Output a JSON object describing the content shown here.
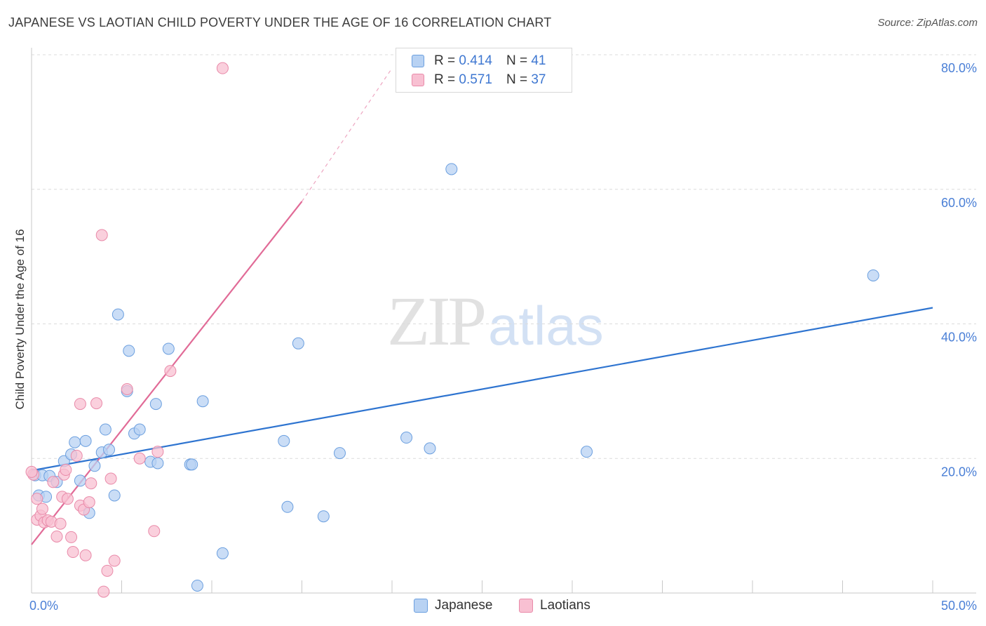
{
  "header": {
    "title": "JAPANESE VS LAOTIAN CHILD POVERTY UNDER THE AGE OF 16 CORRELATION CHART",
    "source": "Source: ZipAtlas.com"
  },
  "watermark": {
    "zip": "ZIP",
    "atlas": "atlas"
  },
  "legend": {
    "rows": [
      {
        "r_label": "R =",
        "r_value": "0.414",
        "n_label": "N =",
        "n_value": "41"
      },
      {
        "r_label": "R =",
        "r_value": "0.571",
        "n_label": "N =",
        "n_value": "37"
      }
    ]
  },
  "bottom_legend": {
    "japanese": "Japanese",
    "laotians": "Laotians"
  },
  "colors": {
    "japanese_fill": "#b8d2f3",
    "japanese_stroke": "#6b9fdf",
    "japanese_line": "#2e74d0",
    "laotians_fill": "#f8c0d2",
    "laotians_stroke": "#e98aa9",
    "laotians_line": "#e16b97",
    "tick_label": "#4a7fd6",
    "grid": "#dcdcdc"
  },
  "chart_data": {
    "type": "scatter",
    "title": "JAPANESE VS LAOTIAN CHILD POVERTY UNDER THE AGE OF 16 CORRELATION CHART",
    "xlabel": "",
    "ylabel": "Child Poverty Under the Age of 16",
    "xlim": [
      0,
      50
    ],
    "ylim": [
      0,
      80
    ],
    "x_tick_labels": [
      "0.0%",
      "50.0%"
    ],
    "y_ticks": [
      20,
      40,
      60,
      80
    ],
    "y_tick_labels": [
      "20.0%",
      "40.0%",
      "60.0%",
      "80.0%"
    ],
    "grid": true,
    "legend_position": "top-center",
    "series": [
      {
        "name": "Japanese",
        "r": 0.414,
        "n": 41,
        "trend": {
          "x": [
            0,
            50
          ],
          "y": [
            18.2,
            42.4
          ]
        },
        "points": [
          [
            0.2,
            17.5
          ],
          [
            0.4,
            14.5
          ],
          [
            0.6,
            17.5
          ],
          [
            0.8,
            14.3
          ],
          [
            1.0,
            17.4
          ],
          [
            1.4,
            16.5
          ],
          [
            1.8,
            19.6
          ],
          [
            2.2,
            20.6
          ],
          [
            2.4,
            22.4
          ],
          [
            2.7,
            16.7
          ],
          [
            3.0,
            22.6
          ],
          [
            3.2,
            11.9
          ],
          [
            3.5,
            18.9
          ],
          [
            3.9,
            20.9
          ],
          [
            4.1,
            24.3
          ],
          [
            4.3,
            21.3
          ],
          [
            4.6,
            14.5
          ],
          [
            4.8,
            41.4
          ],
          [
            5.3,
            30.0
          ],
          [
            5.4,
            36.0
          ],
          [
            5.7,
            23.7
          ],
          [
            6.0,
            24.3
          ],
          [
            6.6,
            19.5
          ],
          [
            7.0,
            19.3
          ],
          [
            6.9,
            28.1
          ],
          [
            7.6,
            36.3
          ],
          [
            8.8,
            19.1
          ],
          [
            8.9,
            19.1
          ],
          [
            9.5,
            28.5
          ],
          [
            9.2,
            1.1
          ],
          [
            10.6,
            5.9
          ],
          [
            14.0,
            22.6
          ],
          [
            14.2,
            12.8
          ],
          [
            14.8,
            37.1
          ],
          [
            16.2,
            11.4
          ],
          [
            17.1,
            20.8
          ],
          [
            20.8,
            23.1
          ],
          [
            22.1,
            21.5
          ],
          [
            23.3,
            63.0
          ],
          [
            30.8,
            21.0
          ],
          [
            46.7,
            47.2
          ]
        ]
      },
      {
        "name": "Laotians",
        "r": 0.571,
        "n": 37,
        "trend": {
          "x": [
            0,
            15
          ],
          "y": [
            7.2,
            58.2
          ],
          "dashed_extension": {
            "x": [
              15,
              20
            ],
            "y": [
              58.2,
              78.0
            ]
          }
        },
        "points": [
          [
            0.1,
            17.6
          ],
          [
            0.3,
            14.0
          ],
          [
            0.3,
            10.9
          ],
          [
            0.5,
            11.5
          ],
          [
            0.6,
            12.5
          ],
          [
            0.7,
            10.5
          ],
          [
            0.9,
            10.8
          ],
          [
            1.1,
            10.6
          ],
          [
            1.2,
            16.5
          ],
          [
            1.4,
            8.4
          ],
          [
            1.6,
            10.3
          ],
          [
            1.7,
            14.3
          ],
          [
            1.8,
            17.6
          ],
          [
            1.9,
            18.3
          ],
          [
            2.0,
            14.0
          ],
          [
            2.2,
            8.3
          ],
          [
            2.3,
            6.1
          ],
          [
            2.5,
            20.4
          ],
          [
            2.7,
            13.0
          ],
          [
            2.7,
            28.1
          ],
          [
            2.9,
            12.4
          ],
          [
            3.0,
            5.6
          ],
          [
            3.2,
            13.5
          ],
          [
            3.3,
            16.3
          ],
          [
            3.6,
            28.2
          ],
          [
            3.9,
            53.2
          ],
          [
            4.0,
            0.2
          ],
          [
            4.2,
            3.3
          ],
          [
            4.4,
            17.0
          ],
          [
            4.6,
            4.8
          ],
          [
            5.3,
            30.3
          ],
          [
            6.0,
            20.0
          ],
          [
            6.8,
            9.2
          ],
          [
            7.0,
            21.0
          ],
          [
            7.7,
            33.0
          ],
          [
            10.6,
            78.0
          ],
          [
            0.0,
            18.0
          ]
        ]
      }
    ]
  }
}
